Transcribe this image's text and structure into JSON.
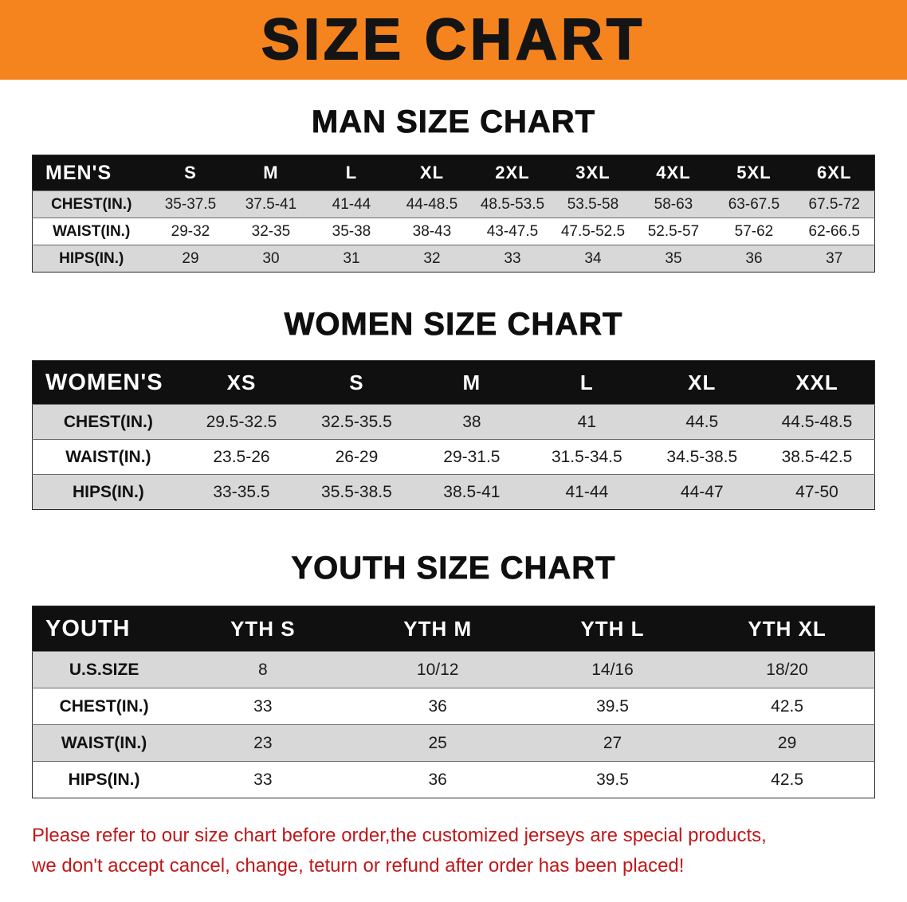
{
  "banner": {
    "title": "SIZE CHART"
  },
  "chart_data": [
    {
      "type": "table",
      "title": "MAN SIZE CHART",
      "columns": [
        "MEN'S",
        "S",
        "M",
        "L",
        "XL",
        "2XL",
        "3XL",
        "4XL",
        "5XL",
        "6XL"
      ],
      "rows": [
        [
          "CHEST(IN.)",
          "35-37.5",
          "37.5-41",
          "41-44",
          "44-48.5",
          "48.5-53.5",
          "53.5-58",
          "58-63",
          "63-67.5",
          "67.5-72"
        ],
        [
          "WAIST(IN.)",
          "29-32",
          "32-35",
          "35-38",
          "38-43",
          "43-47.5",
          "47.5-52.5",
          "52.5-57",
          "57-62",
          "62-66.5"
        ],
        [
          "HIPS(IN.)",
          "29",
          "30",
          "31",
          "32",
          "33",
          "34",
          "35",
          "36",
          "37"
        ]
      ]
    },
    {
      "type": "table",
      "title": "WOMEN SIZE CHART",
      "columns": [
        "WOMEN'S",
        "XS",
        "S",
        "M",
        "L",
        "XL",
        "XXL"
      ],
      "rows": [
        [
          "CHEST(IN.)",
          "29.5-32.5",
          "32.5-35.5",
          "38",
          "41",
          "44.5",
          "44.5-48.5"
        ],
        [
          "WAIST(IN.)",
          "23.5-26",
          "26-29",
          "29-31.5",
          "31.5-34.5",
          "34.5-38.5",
          "38.5-42.5"
        ],
        [
          "HIPS(IN.)",
          "33-35.5",
          "35.5-38.5",
          "38.5-41",
          "41-44",
          "44-47",
          "47-50"
        ]
      ]
    },
    {
      "type": "table",
      "title": "YOUTH SIZE CHART",
      "columns": [
        "YOUTH",
        "YTH S",
        "YTH M",
        "YTH L",
        "YTH XL"
      ],
      "rows": [
        [
          "U.S.SIZE",
          "8",
          "10/12",
          "14/16",
          "18/20"
        ],
        [
          "CHEST(IN.)",
          "33",
          "36",
          "39.5",
          "42.5"
        ],
        [
          "WAIST(IN.)",
          "23",
          "25",
          "27",
          "29"
        ],
        [
          "HIPS(IN.)",
          "33",
          "36",
          "39.5",
          "42.5"
        ]
      ]
    }
  ],
  "footer": {
    "lines": [
      "Please refer to our size chart before order,the customized jerseys are special products,",
      "we don't accept cancel, change, teturn or refund after order has been placed!"
    ]
  },
  "colors": {
    "banner_bg": "#f5841e",
    "header_bg": "#101010",
    "row_stripe": "#d8d8d8",
    "footer_text": "#c0181b"
  }
}
